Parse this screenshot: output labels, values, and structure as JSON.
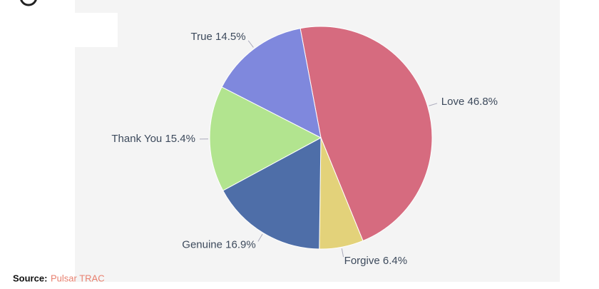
{
  "chart_data": {
    "type": "pie",
    "categories": [
      "Love",
      "Forgive",
      "Genuine",
      "Thank You",
      "True"
    ],
    "values": [
      46.8,
      6.4,
      16.9,
      15.4,
      14.5
    ],
    "value_labels": [
      "46.8%",
      "6.4%",
      "16.9%",
      "15.4%",
      "14.5%"
    ],
    "colors": [
      "#d66b7f",
      "#e3d27a",
      "#4e6ea8",
      "#b2e48f",
      "#7f88dd"
    ],
    "source_label": "Source:",
    "source": "Pulsar TRAC"
  }
}
